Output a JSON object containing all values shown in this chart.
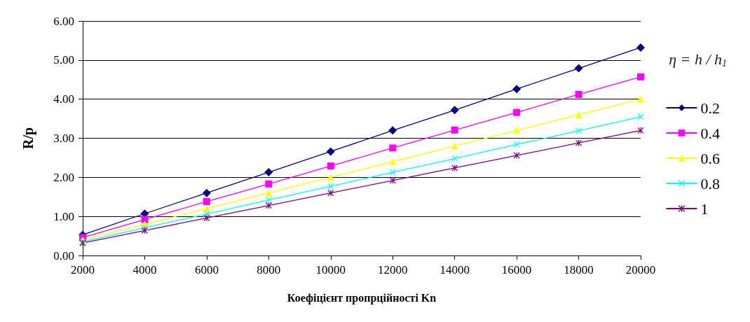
{
  "chart_data": {
    "type": "line",
    "xlabel": "Коефіцієнт пропрційності Kn",
    "ylabel": "R/p",
    "legend_title": "η = h / h$_{1}$",
    "legend": "right",
    "grid": "y",
    "x": [
      2000,
      4000,
      6000,
      8000,
      10000,
      12000,
      14000,
      16000,
      18000,
      20000
    ],
    "xlim": [
      2000,
      20000
    ],
    "xticks": [
      2000,
      4000,
      6000,
      8000,
      10000,
      12000,
      14000,
      16000,
      18000,
      20000
    ],
    "ylim": [
      0,
      6
    ],
    "yticks": [
      {
        "value": 0,
        "label": "0.00"
      },
      {
        "value": 1,
        "label": "1.00"
      },
      {
        "value": 2,
        "label": "2.00"
      },
      {
        "value": 3,
        "label": "3.00"
      },
      {
        "value": 4,
        "label": "4.00"
      },
      {
        "value": 5,
        "label": "5.00"
      },
      {
        "value": 6,
        "label": "6.00"
      }
    ],
    "series": [
      {
        "name": "0.2",
        "color": "#000080",
        "marker": "diamond",
        "values": [
          0.53,
          1.07,
          1.6,
          2.13,
          2.66,
          3.2,
          3.72,
          4.26,
          4.79,
          5.32
        ]
      },
      {
        "name": "0.4",
        "color": "#ff00ff",
        "marker": "square",
        "values": [
          0.46,
          0.92,
          1.38,
          1.83,
          2.29,
          2.75,
          3.21,
          3.66,
          4.12,
          4.57
        ]
      },
      {
        "name": "0.6",
        "color": "#ffff00",
        "marker": "triangle",
        "values": [
          0.4,
          0.8,
          1.2,
          1.6,
          2.0,
          2.4,
          2.8,
          3.2,
          3.6,
          4.0
        ]
      },
      {
        "name": "0.8",
        "color": "#00ffff",
        "marker": "cross",
        "values": [
          0.35,
          0.71,
          1.06,
          1.42,
          1.77,
          2.13,
          2.48,
          2.84,
          3.19,
          3.55
        ]
      },
      {
        "name": "1",
        "color": "#800080",
        "marker": "star",
        "values": [
          0.32,
          0.64,
          0.96,
          1.28,
          1.6,
          1.92,
          2.24,
          2.56,
          2.88,
          3.2
        ]
      }
    ]
  }
}
